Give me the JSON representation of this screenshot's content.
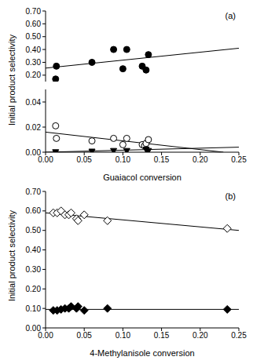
{
  "chart_data": [
    {
      "type": "scatter",
      "annotations": [
        "(a)"
      ],
      "y_label": "Initial product selectivity",
      "xlim": [
        0,
        0.25
      ],
      "ylim": [
        0.15,
        0.7
      ],
      "yticks": [
        {
          "value": 0.2,
          "label": "0.20"
        },
        {
          "value": 0.3,
          "label": "0.30"
        },
        {
          "value": 0.4,
          "label": "0.40"
        },
        {
          "value": 0.5,
          "label": "0.50"
        },
        {
          "value": 0.6,
          "label": "0.60"
        },
        {
          "value": 0.7,
          "label": "0.70"
        }
      ],
      "series": [
        {
          "type": "scatter",
          "marker": "filled_circle",
          "color": "#000000",
          "x": [
            0.013,
            0.014,
            0.06,
            0.088,
            0.1,
            0.105,
            0.125,
            0.13,
            0.133
          ],
          "values": [
            0.17,
            0.27,
            0.3,
            0.4,
            0.25,
            0.4,
            0.27,
            0.24,
            0.36
          ]
        },
        {
          "type": "line",
          "line_style": "solid",
          "color": "#000000",
          "x": [
            0,
            0.25
          ],
          "values": [
            0.255,
            0.41
          ]
        }
      ]
    },
    {
      "type": "scatter",
      "x_label": "Guaiacol conversion",
      "xlim": [
        0,
        0.25
      ],
      "xticks": [
        {
          "value": 0,
          "label": "0.00"
        },
        0.05,
        {
          "value": 0.1,
          "label": "0.10"
        },
        0.15,
        {
          "value": 0.2,
          "label": "0.20"
        },
        0.25
      ],
      "ylim": [
        0,
        0.05
      ],
      "yticks": [
        {
          "value": 0,
          "label": "0.00"
        },
        0.02,
        0.04
      ],
      "series": [
        {
          "type": "scatter",
          "marker": "open_circle",
          "color": "#000000",
          "x": [
            0.013,
            0.014,
            0.06,
            0.088,
            0.1,
            0.105,
            0.125,
            0.128,
            0.13,
            0.133
          ],
          "values": [
            0.021,
            0.011,
            0.009,
            0.011,
            0.006,
            0.011,
            0.006,
            0.005,
            0.007,
            0.01
          ]
        },
        {
          "type": "line",
          "line_style": "solid",
          "color": "#000000",
          "x": [
            0,
            0.23
          ],
          "values": [
            0.016,
            0
          ]
        },
        {
          "type": "scatter",
          "marker": "filled_triangle_down",
          "color": "#000000",
          "x": [
            0.013,
            0.06,
            0.088,
            0.105,
            0.13,
            0.133
          ],
          "values": [
            0,
            0.0005,
            0.001,
            0.001,
            0.002,
            0.001
          ]
        },
        {
          "type": "line",
          "line_style": "solid",
          "color": "#000000",
          "x": [
            0,
            0.25
          ],
          "values": [
            0,
            0.004
          ]
        }
      ]
    },
    {
      "type": "scatter",
      "annotations": [
        "(b)"
      ],
      "x_label": "4-Methylanisole conversion",
      "y_label": "Initial product selectivity",
      "xlim": [
        0,
        0.25
      ],
      "xticks": [
        {
          "value": 0,
          "label": "0.00"
        },
        0.05,
        {
          "value": 0.1,
          "label": "0.10"
        },
        0.15,
        {
          "value": 0.2,
          "label": "0.20"
        },
        0.25
      ],
      "ylim": [
        0,
        0.7
      ],
      "yticks": [
        {
          "value": 0,
          "label": "0.00"
        },
        {
          "value": 0.1,
          "label": "0.10"
        },
        {
          "value": 0.2,
          "label": "0.20"
        },
        {
          "value": 0.3,
          "label": "0.30"
        },
        {
          "value": 0.4,
          "label": "0.40"
        },
        {
          "value": 0.5,
          "label": "0.50"
        },
        {
          "value": 0.6,
          "label": "0.60"
        },
        {
          "value": 0.7,
          "label": "0.70"
        }
      ],
      "series": [
        {
          "type": "scatter",
          "marker": "open_diamond",
          "color": "#000000",
          "x": [
            0.01,
            0.015,
            0.02,
            0.025,
            0.03,
            0.033,
            0.04,
            0.042,
            0.05,
            0.08,
            0.235
          ],
          "values": [
            0.59,
            0.59,
            0.6,
            0.58,
            0.58,
            0.59,
            0.56,
            0.55,
            0.58,
            0.55,
            0.51
          ]
        },
        {
          "type": "line",
          "line_style": "solid",
          "color": "#000000",
          "x": [
            0,
            0.25
          ],
          "values": [
            0.59,
            0.5
          ]
        },
        {
          "type": "scatter",
          "marker": "filled_diamond",
          "color": "#000000",
          "x": [
            0.01,
            0.015,
            0.02,
            0.025,
            0.03,
            0.033,
            0.04,
            0.042,
            0.05,
            0.08,
            0.235
          ],
          "values": [
            0.09,
            0.09,
            0.095,
            0.1,
            0.1,
            0.11,
            0.1,
            0.11,
            0.09,
            0.1,
            0.095
          ]
        },
        {
          "type": "line",
          "line_style": "solid",
          "color": "#000000",
          "x": [
            0,
            0.25
          ],
          "values": [
            0.095,
            0.095
          ]
        }
      ]
    }
  ]
}
